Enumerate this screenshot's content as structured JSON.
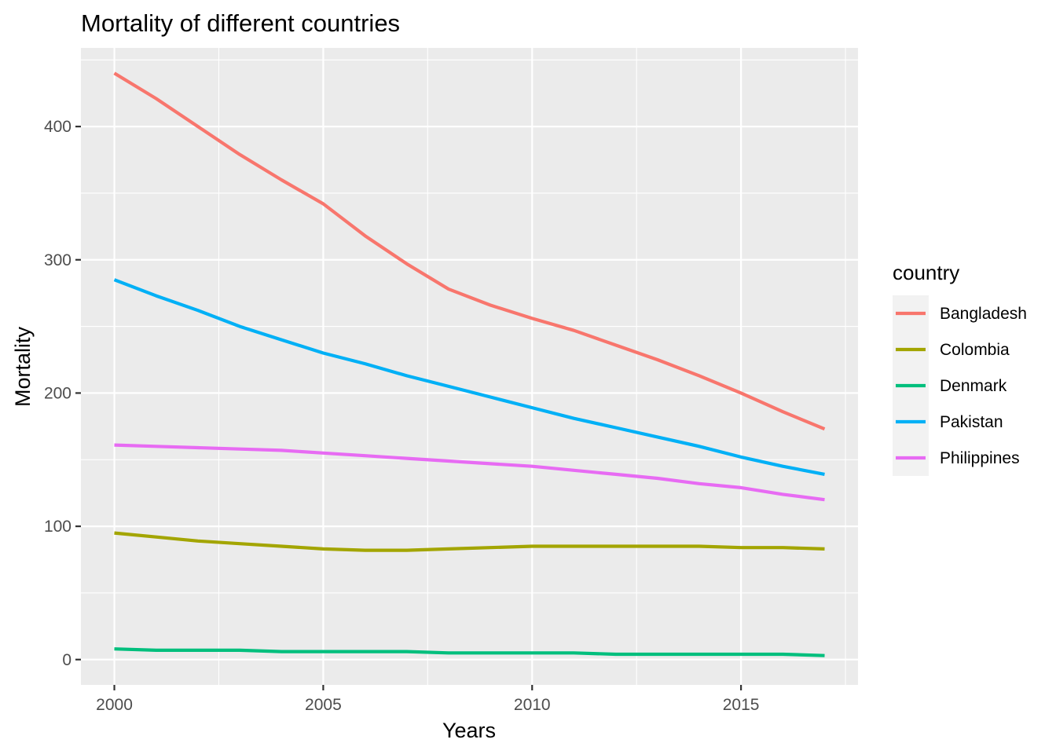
{
  "chart_data": {
    "type": "line",
    "title": "Mortality of different countries",
    "xlabel": "Years",
    "ylabel": "Mortality",
    "xlim": [
      1999.2,
      2017.8
    ],
    "ylim": [
      -19,
      459
    ],
    "x_ticks": [
      2000,
      2005,
      2010,
      2015
    ],
    "x_tick_labels": [
      "2000",
      "2005",
      "2010",
      "2015"
    ],
    "y_ticks": [
      0,
      100,
      200,
      300,
      400
    ],
    "y_tick_labels": [
      "0",
      "100",
      "200",
      "300",
      "400"
    ],
    "grid": true,
    "legend_title": "country",
    "legend_position": "right",
    "x": [
      2000,
      2001,
      2002,
      2003,
      2004,
      2005,
      2006,
      2007,
      2008,
      2009,
      2010,
      2011,
      2012,
      2013,
      2014,
      2015,
      2016,
      2017
    ],
    "series": [
      {
        "name": "Bangladesh",
        "color": "#F8766D",
        "values": [
          440,
          421,
          400,
          379,
          360,
          342,
          318,
          297,
          278,
          266,
          256,
          247,
          236,
          225,
          213,
          200,
          186,
          173
        ]
      },
      {
        "name": "Colombia",
        "color": "#A3A500",
        "values": [
          95,
          92,
          89,
          87,
          85,
          83,
          82,
          82,
          83,
          84,
          85,
          85,
          85,
          85,
          85,
          84,
          84,
          83
        ]
      },
      {
        "name": "Denmark",
        "color": "#00BF7D",
        "values": [
          8,
          7,
          7,
          7,
          6,
          6,
          6,
          6,
          5,
          5,
          5,
          5,
          4,
          4,
          4,
          4,
          4,
          3
        ]
      },
      {
        "name": "Pakistan",
        "color": "#00B0F6",
        "values": [
          285,
          273,
          262,
          250,
          240,
          230,
          222,
          213,
          205,
          197,
          189,
          181,
          174,
          167,
          160,
          152,
          145,
          139
        ]
      },
      {
        "name": "Philippines",
        "color": "#E76BF3",
        "values": [
          161,
          160,
          159,
          158,
          157,
          155,
          153,
          151,
          149,
          147,
          145,
          142,
          139,
          136,
          132,
          129,
          124,
          120
        ]
      }
    ]
  }
}
